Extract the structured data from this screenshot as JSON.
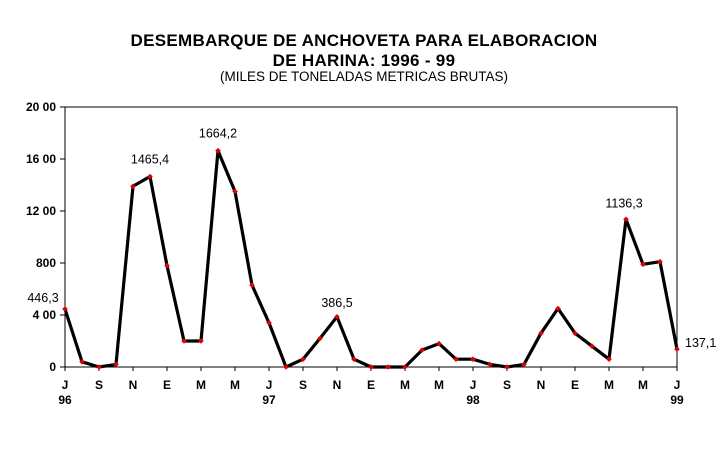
{
  "chart_data": {
    "type": "line",
    "title_line1": "DESEMBARQUE DE ANCHOVETA PARA ELABORACION",
    "title_line2": "DE HARINA: 1996 - 99",
    "subtitle": "(MILES DE TONELADAS METRICAS BRUTAS)",
    "ylim": [
      0,
      2000
    ],
    "y_ticks": [
      {
        "value": 0,
        "label": "0"
      },
      {
        "value": 400,
        "label": "4 00"
      },
      {
        "value": 800,
        "label": "800"
      },
      {
        "value": 1200,
        "label": "12 00"
      },
      {
        "value": 1600,
        "label": "16 00"
      },
      {
        "value": 2000,
        "label": "20 00"
      }
    ],
    "x_ticks": [
      {
        "index": 0,
        "label": "J",
        "year": "96"
      },
      {
        "index": 2,
        "label": "S",
        "year": ""
      },
      {
        "index": 4,
        "label": "N",
        "year": ""
      },
      {
        "index": 6,
        "label": "E",
        "year": ""
      },
      {
        "index": 8,
        "label": "M",
        "year": ""
      },
      {
        "index": 10,
        "label": "M",
        "year": ""
      },
      {
        "index": 12,
        "label": "J",
        "year": "97"
      },
      {
        "index": 14,
        "label": "S",
        "year": ""
      },
      {
        "index": 16,
        "label": "N",
        "year": ""
      },
      {
        "index": 18,
        "label": "E",
        "year": ""
      },
      {
        "index": 20,
        "label": "M",
        "year": ""
      },
      {
        "index": 22,
        "label": "M",
        "year": ""
      },
      {
        "index": 24,
        "label": "J",
        "year": "98"
      },
      {
        "index": 26,
        "label": "S",
        "year": ""
      },
      {
        "index": 28,
        "label": "N",
        "year": ""
      },
      {
        "index": 30,
        "label": "E",
        "year": ""
      },
      {
        "index": 32,
        "label": "M",
        "year": ""
      },
      {
        "index": 34,
        "label": "M",
        "year": ""
      },
      {
        "index": 36,
        "label": "J",
        "year": "99"
      }
    ],
    "series": [
      {
        "values": [
          446.3,
          40,
          0,
          20,
          1390,
          1465.4,
          780,
          200,
          200,
          1664.2,
          1350,
          630,
          340,
          0,
          60,
          220,
          386.5,
          60,
          0,
          0,
          0,
          130,
          180,
          60,
          60,
          20,
          0,
          20,
          260,
          450,
          260,
          160,
          60,
          1136.3,
          790,
          810,
          137.1
        ],
        "line_color": "#000000",
        "marker_color": "#e00000"
      }
    ],
    "data_labels": [
      {
        "index": 0,
        "text": "446,3"
      },
      {
        "index": 5,
        "text": "1465,4"
      },
      {
        "index": 9,
        "text": "1664,2"
      },
      {
        "index": 16,
        "text": "386,5"
      },
      {
        "index": 33,
        "text": "1136,3"
      },
      {
        "index": 36,
        "text": "137,1"
      }
    ],
    "grid": false,
    "legend": "none"
  }
}
